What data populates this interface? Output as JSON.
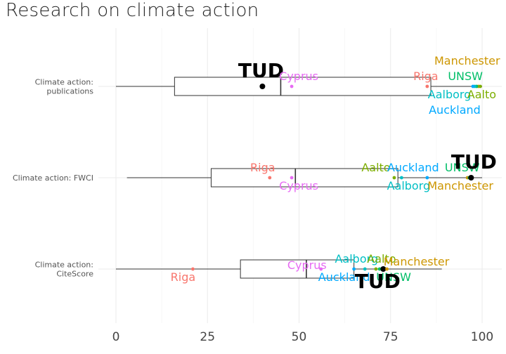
{
  "colors": {
    "Riga": "#f8766d",
    "Cyprus": "#e76bf3",
    "Aalborg": "#00bfc4",
    "Aalto": "#7cae00",
    "Auckland": "#00a9ff",
    "UNSW": "#00be67",
    "Manchester": "#cd9600",
    "TUD": "#000000"
  },
  "chart_data": {
    "type": "box",
    "title": "Research on climate action",
    "xlabel": "",
    "ylabel": "",
    "xlim": [
      0,
      100
    ],
    "xticks": [
      "0",
      "25",
      "50",
      "75",
      "100"
    ],
    "grid": true,
    "categories": [
      "Climate action:\npublications",
      "Climate action: FWCI",
      "Climate action:\nCiteScore"
    ],
    "boxes": [
      {
        "category": "Climate action:\npublications",
        "whisker_low": 0,
        "q1": 16,
        "median": 45,
        "q3": 86,
        "whisker_high": 100
      },
      {
        "category": "Climate action: FWCI",
        "whisker_low": 3,
        "q1": 26,
        "median": 49,
        "q3": 77,
        "whisker_high": 100
      },
      {
        "category": "Climate action:\nCiteScore",
        "whisker_low": 0,
        "q1": 34,
        "median": 52,
        "q3": 65,
        "whisker_high": 89
      }
    ],
    "points": [
      {
        "category": "Climate action:\npublications",
        "name": "TUD",
        "value": 40
      },
      {
        "category": "Climate action:\npublications",
        "name": "Cyprus",
        "value": 48
      },
      {
        "category": "Climate action:\npublications",
        "name": "Riga",
        "value": 85
      },
      {
        "category": "Climate action:\npublications",
        "name": "Manchester",
        "value": 99
      },
      {
        "category": "Climate action:\npublications",
        "name": "UNSW",
        "value": 98.5
      },
      {
        "category": "Climate action:\npublications",
        "name": "Aalborg",
        "value": 98
      },
      {
        "category": "Climate action:\npublications",
        "name": "Aalto",
        "value": 99.5
      },
      {
        "category": "Climate action:\npublications",
        "name": "Auckland",
        "value": 97.5
      },
      {
        "category": "Climate action: FWCI",
        "name": "Riga",
        "value": 42
      },
      {
        "category": "Climate action: FWCI",
        "name": "Cyprus",
        "value": 48
      },
      {
        "category": "Climate action: FWCI",
        "name": "Aalto",
        "value": 76
      },
      {
        "category": "Climate action: FWCI",
        "name": "Aalborg",
        "value": 78
      },
      {
        "category": "Climate action: FWCI",
        "name": "Auckland",
        "value": 85
      },
      {
        "category": "Climate action: FWCI",
        "name": "Manchester",
        "value": 96
      },
      {
        "category": "Climate action: FWCI",
        "name": "UNSW",
        "value": 96.5
      },
      {
        "category": "Climate action: FWCI",
        "name": "TUD",
        "value": 97
      },
      {
        "category": "Climate action:\nCiteScore",
        "name": "Riga",
        "value": 21
      },
      {
        "category": "Climate action:\nCiteScore",
        "name": "Cyprus",
        "value": 56
      },
      {
        "category": "Climate action:\nCiteScore",
        "name": "Auckland",
        "value": 65
      },
      {
        "category": "Climate action:\nCiteScore",
        "name": "Aalborg",
        "value": 68
      },
      {
        "category": "Climate action:\nCiteScore",
        "name": "Aalto",
        "value": 71
      },
      {
        "category": "Climate action:\nCiteScore",
        "name": "UNSW",
        "value": 72
      },
      {
        "category": "Climate action:\nCiteScore",
        "name": "TUD",
        "value": 73
      },
      {
        "category": "Climate action:\nCiteScore",
        "name": "Manchester",
        "value": 74
      }
    ]
  }
}
